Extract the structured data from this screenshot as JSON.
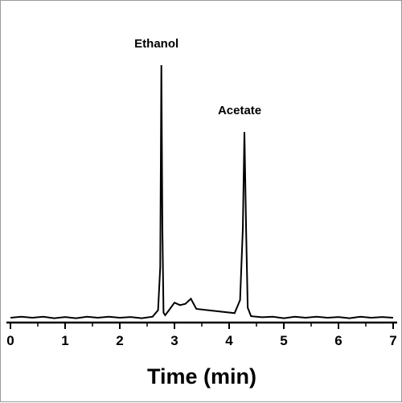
{
  "chart_data": {
    "type": "line",
    "title": "",
    "xlabel": "Time (min)",
    "ylabel": "",
    "xlim": [
      0,
      7
    ],
    "ylim": [
      0,
      1
    ],
    "x_ticks": [
      0,
      1,
      2,
      3,
      4,
      5,
      6,
      7
    ],
    "grid": false,
    "legend": "none",
    "line_color": "#000000",
    "series": [
      {
        "x": [
          0,
          0.2,
          0.4,
          0.6,
          0.8,
          1.0,
          1.2,
          1.4,
          1.6,
          1.8,
          2.0,
          2.2,
          2.4,
          2.6,
          2.7,
          2.74,
          2.76,
          2.78,
          2.8,
          2.83,
          2.9,
          3.0,
          3.1,
          3.2,
          3.3,
          3.4,
          4.1,
          4.2,
          4.25,
          4.28,
          4.31,
          4.34,
          4.4,
          4.6,
          4.8,
          5.0,
          5.2,
          5.4,
          5.6,
          5.8,
          6.0,
          6.2,
          6.4,
          6.6,
          6.8,
          7.0
        ],
        "y": [
          0.0,
          0.004,
          0.0,
          0.004,
          -0.002,
          0.003,
          -0.002,
          0.004,
          0.0,
          0.004,
          0.0,
          0.003,
          -0.002,
          0.004,
          0.03,
          0.2,
          1.0,
          0.35,
          0.02,
          0.01,
          0.03,
          0.06,
          0.05,
          0.055,
          0.075,
          0.035,
          0.018,
          0.07,
          0.35,
          0.735,
          0.35,
          0.04,
          0.006,
          0.002,
          0.004,
          -0.002,
          0.004,
          0.0,
          0.004,
          0.0,
          0.003,
          -0.002,
          0.004,
          0.0,
          0.003,
          0.0
        ]
      }
    ],
    "annotations": [
      {
        "text": "Ethanol",
        "x": 2.76,
        "y": 1.0
      },
      {
        "text": "Acetate",
        "x": 4.28,
        "y": 0.735
      }
    ]
  }
}
